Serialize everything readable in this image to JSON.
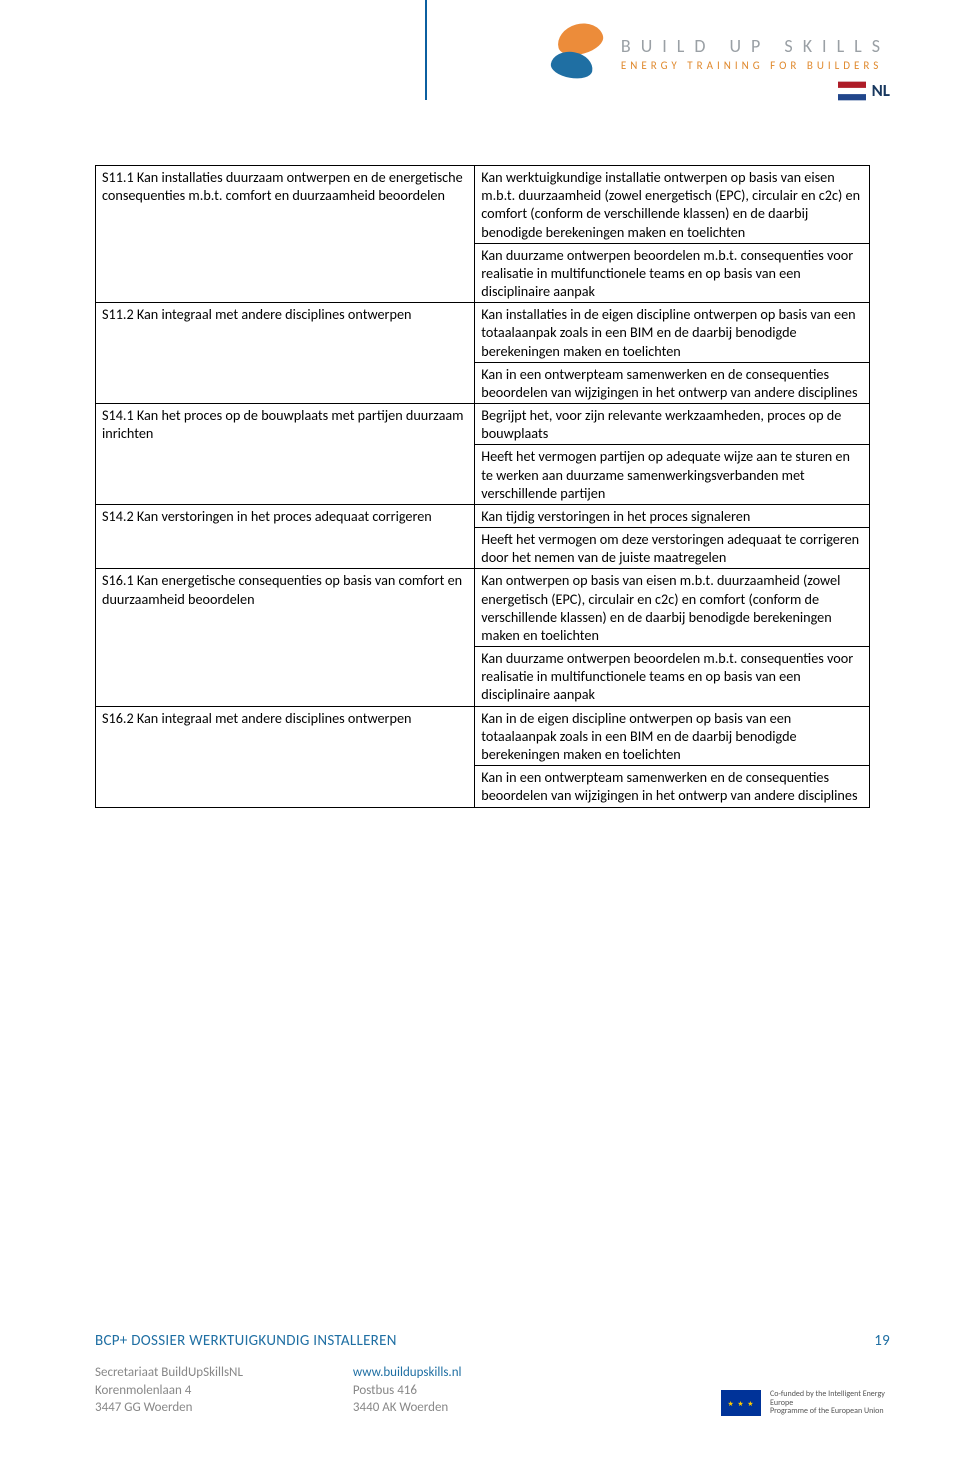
{
  "brand": {
    "title": "BUILD UP SKILLS",
    "subtitle": "ENERGY TRAINING FOR BUILDERS",
    "nl": "NL",
    "logo_colors": {
      "top": "#ec8c3a",
      "bottom": "#1f6fa3"
    },
    "flag_colors": {
      "top": "#ae1c28",
      "mid": "#ffffff",
      "bot": "#21468b"
    }
  },
  "rows": [
    {
      "left": "S11.1 Kan installaties duurzaam ontwerpen en de energetische consequenties m.b.t. comfort en duurzaamheid beoordelen",
      "rights": [
        "Kan werktuigkundige installatie ontwerpen op basis van eisen m.b.t. duurzaamheid (zowel energetisch (EPC), circulair en c2c) en comfort (conform de verschillende klassen) en de daarbij benodigde berekeningen maken en toelichten",
        "Kan duurzame ontwerpen beoordelen m.b.t. consequenties voor realisatie in multifunctionele teams en op basis van een disciplinaire aanpak"
      ]
    },
    {
      "left": "S11.2 Kan integraal met andere disciplines ontwerpen",
      "rights": [
        "Kan installaties in de eigen discipline ontwerpen op basis van een totaalaanpak zoals in een BIM en de daarbij benodigde berekeningen maken en toelichten",
        "Kan in een ontwerpteam samenwerken en de consequenties beoordelen van wijzigingen in het ontwerp van andere disciplines"
      ]
    },
    {
      "left": "S14.1 Kan het proces op de bouwplaats met partijen duurzaam inrichten",
      "rights": [
        "Begrijpt het, voor zijn relevante werkzaamheden, proces op de bouwplaats",
        "Heeft het vermogen partijen op adequate wijze aan te sturen en te werken aan duurzame samenwerkingsverbanden met verschillende partijen"
      ]
    },
    {
      "left": "S14.2 Kan verstoringen in het proces adequaat corrigeren",
      "rights": [
        "Kan tijdig verstoringen in het proces signaleren",
        "Heeft het vermogen om deze verstoringen adequaat te corrigeren door het nemen van de juiste maatregelen"
      ]
    },
    {
      "left": "S16.1 Kan energetische consequenties op basis van comfort en duurzaamheid beoordelen",
      "rights": [
        "Kan ontwerpen op basis van eisen m.b.t. duurzaamheid (zowel energetisch (EPC), circulair en c2c) en comfort (conform de verschillende klassen) en de daarbij benodigde berekeningen maken en toelichten",
        "Kan duurzame ontwerpen beoordelen m.b.t. consequenties voor realisatie in multifunctionele teams en op basis van een disciplinaire aanpak"
      ]
    },
    {
      "left": "S16.2 Kan integraal met andere disciplines ontwerpen",
      "rights": [
        "Kan in de eigen discipline ontwerpen op basis van een totaalaanpak zoals in een BIM en de daarbij benodigde berekeningen maken en toelichten",
        "Kan in een ontwerpteam samenwerken en de consequenties beoordelen van wijzigingen in het ontwerp van andere disciplines"
      ]
    }
  ],
  "footer": {
    "title": "BCP+ DOSSIER WERKTUIGKUNDIG INSTALLEREN",
    "page": "19",
    "col1a": "Secretariaat BuildUpSkillsNL",
    "col1b": "Korenmolenlaan 4",
    "col1c": "3447 GG Woerden",
    "col2a": "www.buildupskills.nl",
    "col2b": "Postbus 416",
    "col2c": "3440 AK Woerden",
    "eu1": "Co-funded by the Intelligent Energy Europe",
    "eu2": "Programme of the European Union"
  }
}
